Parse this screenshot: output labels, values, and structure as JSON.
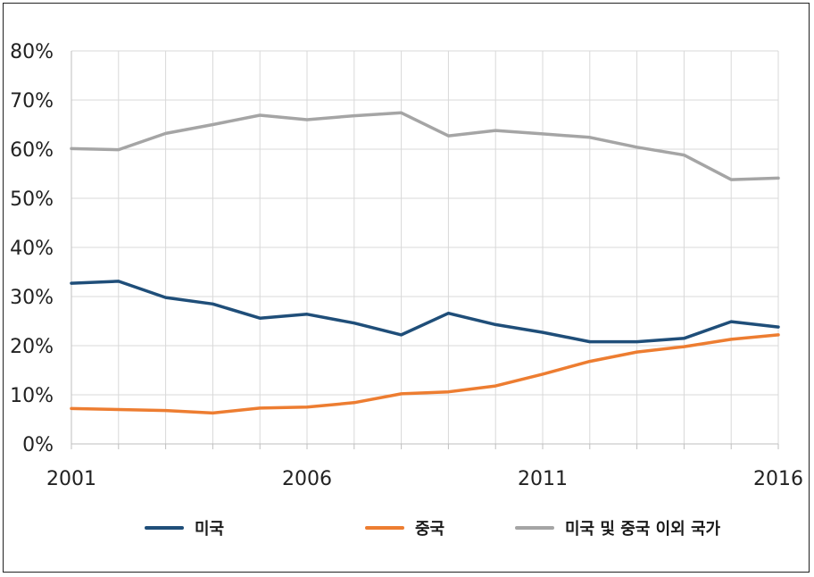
{
  "chart_data": {
    "type": "line",
    "x": [
      2001,
      2002,
      2003,
      2004,
      2005,
      2006,
      2007,
      2008,
      2009,
      2010,
      2011,
      2012,
      2013,
      2014,
      2015,
      2016
    ],
    "x_tick_labels": [
      "2001",
      "2006",
      "2011",
      "2016"
    ],
    "y_tick_labels": [
      "0%",
      "10%",
      "20%",
      "30%",
      "40%",
      "50%",
      "60%",
      "70%",
      "80%"
    ],
    "ylim": [
      0,
      80
    ],
    "xlim": [
      2001,
      2016
    ],
    "grid": true,
    "legend_position": "bottom",
    "series": [
      {
        "name": "미국",
        "color": "#1f4e79",
        "values": [
          32.7,
          33.1,
          29.8,
          28.5,
          25.6,
          26.4,
          24.6,
          22.2,
          26.6,
          24.3,
          22.7,
          20.8,
          20.8,
          21.5,
          24.9,
          23.8
        ]
      },
      {
        "name": "중국",
        "color": "#ed7d31",
        "values": [
          7.2,
          7.0,
          6.8,
          6.3,
          7.3,
          7.5,
          8.4,
          10.2,
          10.6,
          11.8,
          14.2,
          16.8,
          18.7,
          19.8,
          21.3,
          22.2
        ]
      },
      {
        "name": "미국 및 중국 이외 국가",
        "color": "#a5a5a5",
        "values": [
          60.1,
          59.9,
          63.2,
          65.0,
          66.9,
          66.0,
          66.8,
          67.4,
          62.7,
          63.8,
          63.1,
          62.4,
          60.4,
          58.8,
          53.8,
          54.1
        ]
      }
    ]
  }
}
